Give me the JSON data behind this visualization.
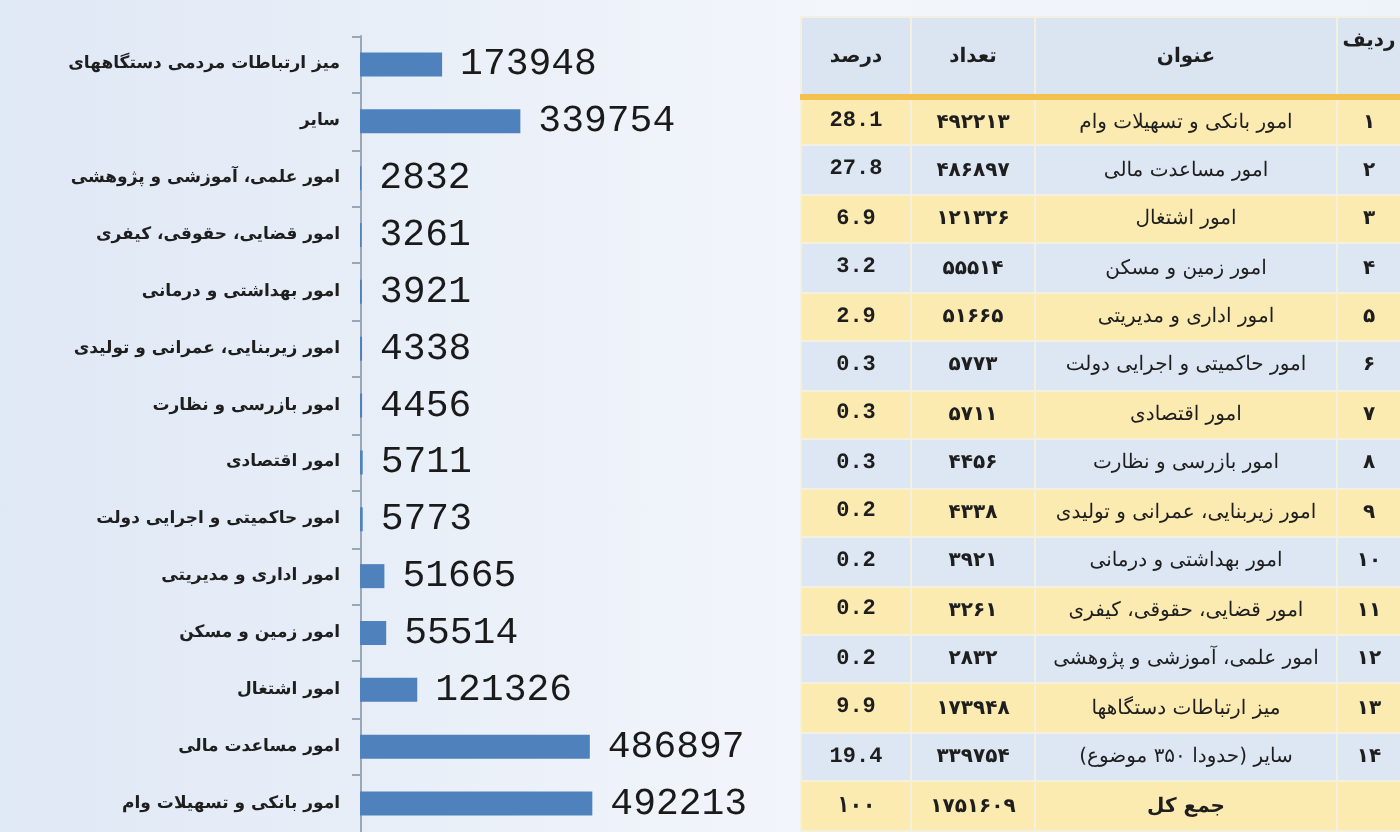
{
  "chart_data": [
    {
      "type": "bar",
      "orientation": "horizontal",
      "categories": [
        "میز ارتباطات مردمی دستگاههای",
        "سایر",
        "امور علمی، آموزشی و پژوهشی",
        "امور قضایی، حقوقی، کیفری",
        "امور بهداشتی و درمانی",
        "امور زیربنایی، عمرانی و تولیدی",
        "امور بازرسی و نظارت",
        "امور اقتصادی",
        "امور حاکمیتی و اجرایی دولت",
        "امور اداری و مدیریتی",
        "امور زمین و مسکن",
        "امور اشتغال",
        "امور مساعدت مالی",
        "امور بانکی و تسهیلات وام"
      ],
      "values": [
        173948,
        339754,
        2832,
        3261,
        3921,
        4338,
        4456,
        5711,
        5773,
        51665,
        55514,
        121326,
        486897,
        492213
      ],
      "color": "#4f81bd",
      "data_labels": true
    },
    {
      "type": "other",
      "ylabel": "عنوان",
      "categories": [
        "امور بانکی و تسهیلات وام",
        "امور مساعدت مالی",
        "امور اشتغال",
        "امور زمین و مسکن",
        "امور اداری و مدیریتی",
        "امور حاکمیتی و اجرایی دولت",
        "امور اقتصادی",
        "امور بازرسی و نظارت",
        "امور زیربنایی، عمرانی و تولیدی",
        "امور بهداشتی و درمانی",
        "امور قضایی، حقوقی، کیفری",
        "امور علمی، آموزشی و پژوهشی",
        "میز ارتباطات دستگاهها",
        "سایر (حدودا ۳۵۰ موضوع)",
        "جمع کل"
      ],
      "series": [
        {
          "name": "ردیف",
          "values": [
            1,
            2,
            3,
            4,
            5,
            6,
            7,
            8,
            9,
            10,
            11,
            12,
            13,
            14,
            null
          ],
          "value_labels": [
            "۱",
            "۲",
            "۳",
            "۴",
            "۵",
            "۶",
            "۷",
            "۸",
            "۹",
            "۱۰",
            "۱۱",
            "۱۲",
            "۱۳",
            "۱۴",
            null
          ],
          "colors": [
            "#fcebb0",
            "#dde7f3",
            "#fcebb0",
            "#dde7f3",
            "#fcebb0",
            "#dde7f3",
            "#fcebb0",
            "#dde7f3",
            "#fcebb0",
            "#dde7f3",
            "#fcebb0",
            "#dde7f3",
            "#fcebb0",
            "#dde7f3",
            "#fcebb0"
          ]
        },
        {
          "name": "تعداد",
          "values": [
            492213,
            486897,
            121326,
            55514,
            51665,
            5773,
            5711,
            4456,
            4338,
            3921,
            3261,
            2832,
            173948,
            339754,
            1751609
          ],
          "value_labels": [
            "۴۹۲۲۱۳",
            "۴۸۶۸۹۷",
            "۱۲۱۳۲۶",
            "۵۵۵۱۴",
            "۵۱۶۶۵",
            "۵۷۷۳",
            "۵۷۱۱",
            "۴۴۵۶",
            "۴۳۳۸",
            "۳۹۲۱",
            "۳۲۶۱",
            "۲۸۳۲",
            "۱۷۳۹۴۸",
            "۳۳۹۷۵۴",
            "۱۷۵۱۶۰۹"
          ],
          "colors": [
            "#fcebb0",
            "#dde7f3",
            "#fcebb0",
            "#dde7f3",
            "#fcebb0",
            "#dde7f3",
            "#fcebb0",
            "#dde7f3",
            "#fcebb0",
            "#dde7f3",
            "#fcebb0",
            "#dde7f3",
            "#fcebb0",
            "#dde7f3",
            "#fcebb0"
          ]
        },
        {
          "name": "درصد",
          "values": [
            28.1,
            27.8,
            6.9,
            3.2,
            2.9,
            0.3,
            0.3,
            0.3,
            0.2,
            0.2,
            0.2,
            0.2,
            9.9,
            19.4,
            100
          ],
          "value_labels": [
            "28.1",
            "27.8",
            "6.9",
            "3.2",
            "2.9",
            "0.3",
            "0.3",
            "0.3",
            "0.2",
            "0.2",
            "0.2",
            "0.2",
            "9.9",
            "19.4",
            "۱۰۰"
          ],
          "colors": [
            "#fcebb0",
            "#dde7f3",
            "#fcebb0",
            "#dde7f3",
            "#fcebb0",
            "#dde7f3",
            "#fcebb0",
            "#dde7f3",
            "#fcebb0",
            "#dde7f3",
            "#fcebb0",
            "#dde7f3",
            "#fcebb0",
            "#dde7f3",
            "#fcebb0"
          ]
        }
      ]
    }
  ]
}
